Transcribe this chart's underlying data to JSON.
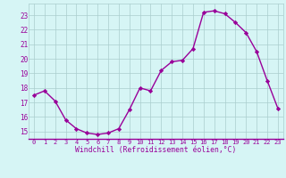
{
  "x": [
    0,
    1,
    2,
    3,
    4,
    5,
    6,
    7,
    8,
    9,
    10,
    11,
    12,
    13,
    14,
    15,
    16,
    17,
    18,
    19,
    20,
    21,
    22,
    23
  ],
  "y": [
    17.5,
    17.8,
    17.1,
    15.8,
    15.2,
    14.9,
    14.8,
    14.9,
    15.2,
    16.5,
    18.0,
    17.8,
    19.2,
    19.8,
    19.9,
    20.7,
    23.2,
    23.3,
    23.1,
    22.5,
    21.8,
    20.5,
    18.5,
    16.6
  ],
  "line_color": "#990099",
  "marker": "D",
  "marker_size": 2.2,
  "bg_color": "#d6f5f5",
  "grid_color": "#aacece",
  "xlabel": "Windchill (Refroidissement éolien,°C)",
  "xlabel_color": "#990099",
  "tick_color": "#990099",
  "ylim": [
    14.5,
    23.8
  ],
  "xlim": [
    -0.5,
    23.5
  ],
  "yticks": [
    15,
    16,
    17,
    18,
    19,
    20,
    21,
    22,
    23
  ],
  "xticks": [
    0,
    1,
    2,
    3,
    4,
    5,
    6,
    7,
    8,
    9,
    10,
    11,
    12,
    13,
    14,
    15,
    16,
    17,
    18,
    19,
    20,
    21,
    22,
    23
  ],
  "line_width": 1.0,
  "bottom_line_color": "#990099"
}
